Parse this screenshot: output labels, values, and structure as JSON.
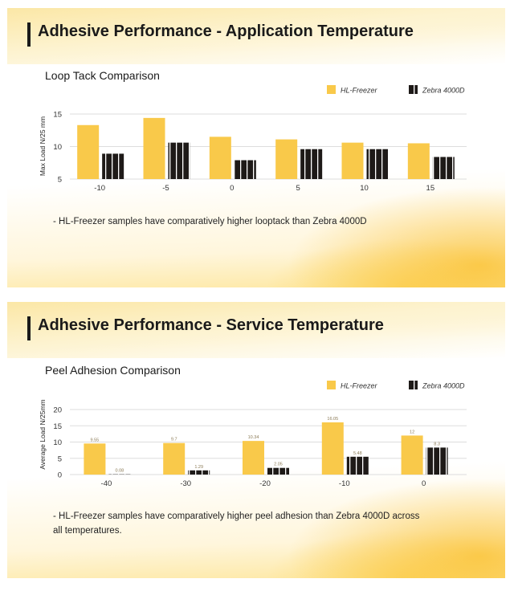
{
  "sections": [
    {
      "header": "Adhesive Performance - Application Temperature",
      "chart_title": "Loop Tack Comparison",
      "note": "- HL-Freezer samples have comparatively higher looptack than Zebra 4000D"
    },
    {
      "header": "Adhesive Performance - Service Temperature",
      "chart_title": "Peel Adhesion Comparison",
      "note": "- HL-Freezer samples have comparatively higher peel adhesion than Zebra 4000D across all temperatures."
    }
  ],
  "colors": {
    "hl": "#f9c94a",
    "zebra": "#1e1a18",
    "grid": "#dddddd"
  },
  "chart_data": [
    {
      "type": "bar",
      "ylabel": "Max Load N/25 mm",
      "ylim": [
        5,
        15
      ],
      "yticks": [
        5,
        10,
        15
      ],
      "categories": [
        "-10",
        "-5",
        "0",
        "5",
        "10",
        "15"
      ],
      "series": [
        {
          "name": "HL-Freezer",
          "values": [
            13.3,
            14.4,
            11.5,
            11.1,
            10.6,
            10.5
          ]
        },
        {
          "name": "Zebra 4000D",
          "values": [
            8.9,
            10.6,
            7.9,
            9.6,
            9.6,
            8.4
          ]
        }
      ],
      "data_labels": false,
      "legend": "top-right"
    },
    {
      "type": "bar",
      "ylabel": "Average Load N/25mm",
      "ylim": [
        0,
        20
      ],
      "yticks": [
        0,
        5,
        10,
        15,
        20
      ],
      "categories": [
        "-40",
        "-30",
        "-20",
        "-10",
        "0"
      ],
      "series": [
        {
          "name": "HL-Freezer",
          "values": [
            9.55,
            9.7,
            10.34,
            16.05,
            12
          ]
        },
        {
          "name": "Zebra 4000D",
          "values": [
            0.08,
            1.29,
            2.05,
            5.48,
            8.3
          ]
        }
      ],
      "data_labels": true,
      "legend": "top-right"
    }
  ]
}
